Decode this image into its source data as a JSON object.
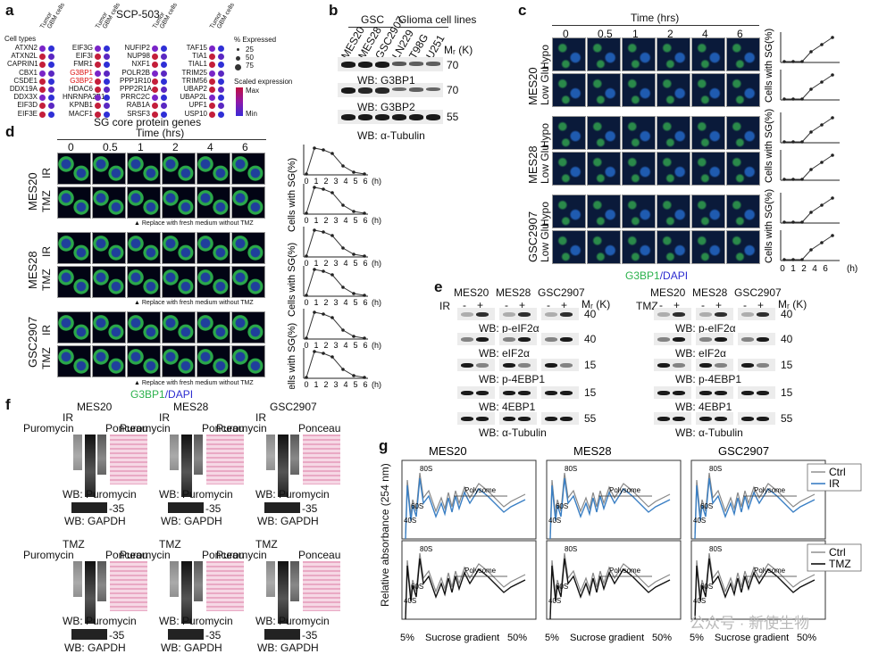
{
  "panel_a": {
    "label": "a",
    "title": "SCP-503",
    "row_header": "Cell types",
    "col1": [
      "ATXN2",
      "ATXN2L",
      "CAPRIN1",
      "CBX1",
      "CSDE1",
      "DDX19A",
      "DDX3X",
      "EIF3D",
      "EIF3E"
    ],
    "col2": [
      "EIF3G",
      "EIF3I",
      "FMR1",
      "G3BP1",
      "G3BP2",
      "HDAC6",
      "HNRNPA2B1",
      "KPNB1",
      "MACF1"
    ],
    "col3": [
      "NUFIP2",
      "NUP98",
      "NXF1",
      "POLR2B",
      "PPP1R10",
      "PPP2R1A",
      "PRRC2C",
      "RAB1A",
      "SRSF3"
    ],
    "col4": [
      "TAF15",
      "TIA1",
      "TIAL1",
      "TRIM25",
      "TRIM56",
      "UBAP2",
      "UBAP2L",
      "UPF1",
      "USP10"
    ],
    "highlight": [
      "G3BP1",
      "G3BP2"
    ],
    "pct_title": "% Expressed",
    "pct_values": [
      "25",
      "50",
      "75"
    ],
    "scale_title": "Scaled expression",
    "scale_max": "Max",
    "scale_min": "Min",
    "xlabel": "SG core protein genes",
    "col_header_a": "Tumor",
    "col_header_b": "GBM cells"
  },
  "panel_b": {
    "label": "b",
    "gsc": "GSC",
    "glioma": "Glioma cell lines",
    "lanes": [
      "MES20",
      "MES28",
      "GSC2907",
      "LN229",
      "T98G",
      "U251"
    ],
    "mr": "Mᵣ (K)",
    "markers": [
      "70",
      "70",
      "55"
    ],
    "wb": [
      "WB: G3BP1",
      "WB: G3BP2",
      "WB: α-Tubulin"
    ]
  },
  "panel_c": {
    "label": "c",
    "time_title": "Time (hrs)",
    "times": [
      "0",
      "0.5",
      "1",
      "2",
      "4",
      "6"
    ],
    "groups": [
      "MES20",
      "MES28",
      "GSC2907"
    ],
    "conds": [
      "Low Glu",
      "Hypo"
    ],
    "legend_green": "G3BP1",
    "legend_blue": "/DAPI",
    "ylabel": "Cells with SG(%)",
    "xticks": [
      "0",
      "1",
      "2",
      "4",
      "6"
    ],
    "xunit": "(h)"
  },
  "panel_d": {
    "label": "d",
    "time_title": "Time (hrs)",
    "times": [
      "0",
      "0.5",
      "1",
      "2",
      "4",
      "6"
    ],
    "groups": [
      "MES20",
      "MES28",
      "GSC2907"
    ],
    "conds": [
      "IR",
      "TMZ"
    ],
    "note": "▲ Replace with fresh medium without TMZ",
    "legend_green": "G3BP1",
    "legend_blue": "/DAPI",
    "ylabel": "Cells with SG(%)",
    "xticks": [
      "0",
      "1",
      "2",
      "3",
      "4",
      "5",
      "6"
    ],
    "xunit": "(h)"
  },
  "panel_e": {
    "label": "e",
    "lines": [
      "MES20",
      "MES28",
      "GSC2907"
    ],
    "treat_left": "IR",
    "treat_right": "TMZ",
    "minus": "-",
    "plus": "+",
    "mr": "Mᵣ (K)",
    "markers": [
      "40",
      "40",
      "15",
      "15",
      "55"
    ],
    "wb": [
      "WB: p-eIF2α",
      "WB: eIF2α",
      "WB: p-4EBP1",
      "WB: 4EBP1",
      "WB: α-Tubulin"
    ]
  },
  "panel_f": {
    "label": "f",
    "lines": [
      "MES20",
      "MES28",
      "GSC2907"
    ],
    "treat_top": "IR",
    "treat_bottom": "TMZ",
    "puro": "Puromycin",
    "ponceau": "Ponceau",
    "wb_puro": "WB: Puromycin",
    "wb_gapdh": "WB: GAPDH",
    "marker": "-35"
  },
  "panel_g": {
    "label": "g",
    "lines": [
      "MES20",
      "MES28",
      "GSC2907"
    ],
    "ylabel": "Relative absorbance (254 nm)",
    "xlabel": "Sucrose gradient",
    "x_start": "5%",
    "x_end": "50%",
    "peaks": [
      "40S",
      "60S",
      "80S"
    ],
    "polysome": "Polysome",
    "legend_top": [
      "Ctrl",
      "IR"
    ],
    "legend_bottom": [
      "Ctrl",
      "TMZ"
    ],
    "colors": {
      "ctrl": "#888888",
      "ir": "#3a7fc4",
      "tmz": "#111111"
    }
  },
  "watermark": "公众号 · 新使生物"
}
